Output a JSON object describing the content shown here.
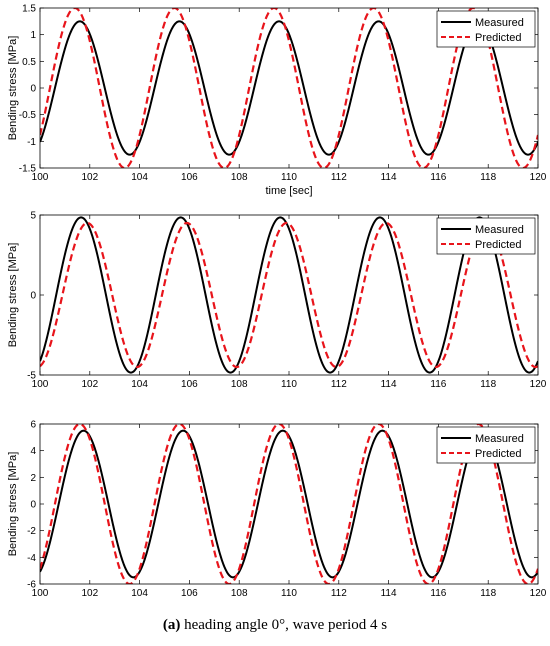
{
  "chart_data": [
    {
      "type": "line",
      "xlabel": "time [sec]",
      "ylabel": "Bending stress [MPa]",
      "xlim": [
        100,
        120
      ],
      "ylim": [
        -1.5,
        1.5
      ],
      "xticks": [
        100,
        102,
        104,
        106,
        108,
        110,
        112,
        114,
        116,
        118,
        120
      ],
      "yticks": [
        -1.5,
        -1,
        -0.5,
        0,
        0.5,
        1,
        1.5
      ],
      "legend_position": "top-right",
      "series": [
        {
          "name": "Measured",
          "color": "#000000",
          "style": "solid",
          "period_s": 4,
          "amplitude": 1.25,
          "peak_time": 101.6
        },
        {
          "name": "Predicted",
          "color": "#e8141b",
          "style": "dashed",
          "period_s": 4,
          "amplitude": 1.5,
          "peak_time": 101.4
        }
      ]
    },
    {
      "type": "line",
      "xlabel": "",
      "ylabel": "Bending stress [MPa]",
      "xlim": [
        100,
        120
      ],
      "ylim": [
        -5,
        5
      ],
      "xticks": [
        100,
        102,
        104,
        106,
        108,
        110,
        112,
        114,
        116,
        118,
        120
      ],
      "yticks": [
        -5,
        0,
        5
      ],
      "legend_position": "top-right",
      "series": [
        {
          "name": "Measured",
          "color": "#000000",
          "style": "solid",
          "period_s": 4,
          "amplitude": 4.85,
          "peak_time": 101.65
        },
        {
          "name": "Predicted",
          "color": "#e8141b",
          "style": "dashed",
          "period_s": 4,
          "amplitude": 4.5,
          "peak_time": 101.9
        }
      ]
    },
    {
      "type": "line",
      "xlabel": "",
      "ylabel": "Bending stress [MPa]",
      "xlim": [
        100,
        120
      ],
      "ylim": [
        -6,
        6
      ],
      "xticks": [
        100,
        102,
        104,
        106,
        108,
        110,
        112,
        114,
        116,
        118,
        120
      ],
      "yticks": [
        -6,
        -4,
        -2,
        0,
        2,
        4,
        6
      ],
      "legend_position": "top-right",
      "series": [
        {
          "name": "Measured",
          "color": "#000000",
          "style": "solid",
          "period_s": 4,
          "amplitude": 5.5,
          "peak_time": 101.75
        },
        {
          "name": "Predicted",
          "color": "#e8141b",
          "style": "dashed",
          "period_s": 4,
          "amplitude": 6.0,
          "peak_time": 101.6
        }
      ]
    }
  ],
  "caption": {
    "label": "(a)",
    "text": " heading angle 0°, wave period 4 s"
  }
}
